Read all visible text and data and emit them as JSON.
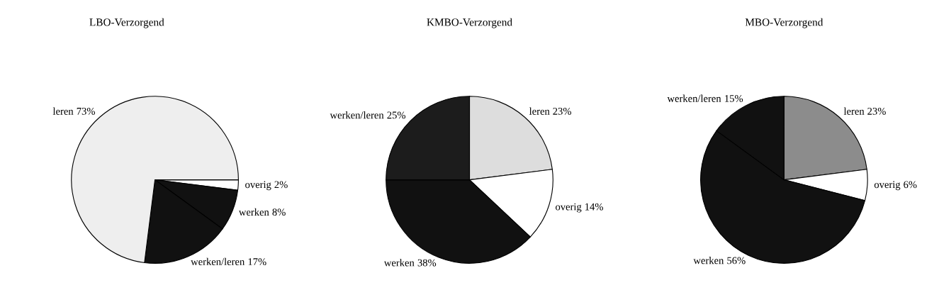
{
  "chart_data": [
    {
      "type": "pie",
      "title": "LBO-Verzorgend",
      "categories": [
        "overig",
        "werken",
        "werken/leren",
        "leren"
      ],
      "values": [
        2,
        8,
        17,
        73
      ],
      "colors": [
        "#ffffff",
        "#111111",
        "#111111",
        "#eeeeee"
      ],
      "value_labels": [
        "2%",
        "8%",
        "17%",
        "73%"
      ]
    },
    {
      "type": "pie",
      "title": "KMBO-Verzorgend",
      "categories": [
        "leren",
        "overig",
        "werken",
        "werken/leren"
      ],
      "values": [
        23,
        14,
        38,
        25
      ],
      "colors": [
        "#dddddd",
        "#ffffff",
        "#111111",
        "#1c1c1c"
      ],
      "value_labels": [
        "23%",
        "14%",
        "38%",
        "25%"
      ]
    },
    {
      "type": "pie",
      "title": "MBO-Verzorgend",
      "categories": [
        "leren",
        "overig",
        "werken",
        "werken/leren"
      ],
      "values": [
        23,
        6,
        56,
        15
      ],
      "colors": [
        "#8c8c8c",
        "#ffffff",
        "#111111",
        "#111111"
      ],
      "value_labels": [
        "23%",
        "6%",
        "56%",
        "15%"
      ]
    }
  ]
}
